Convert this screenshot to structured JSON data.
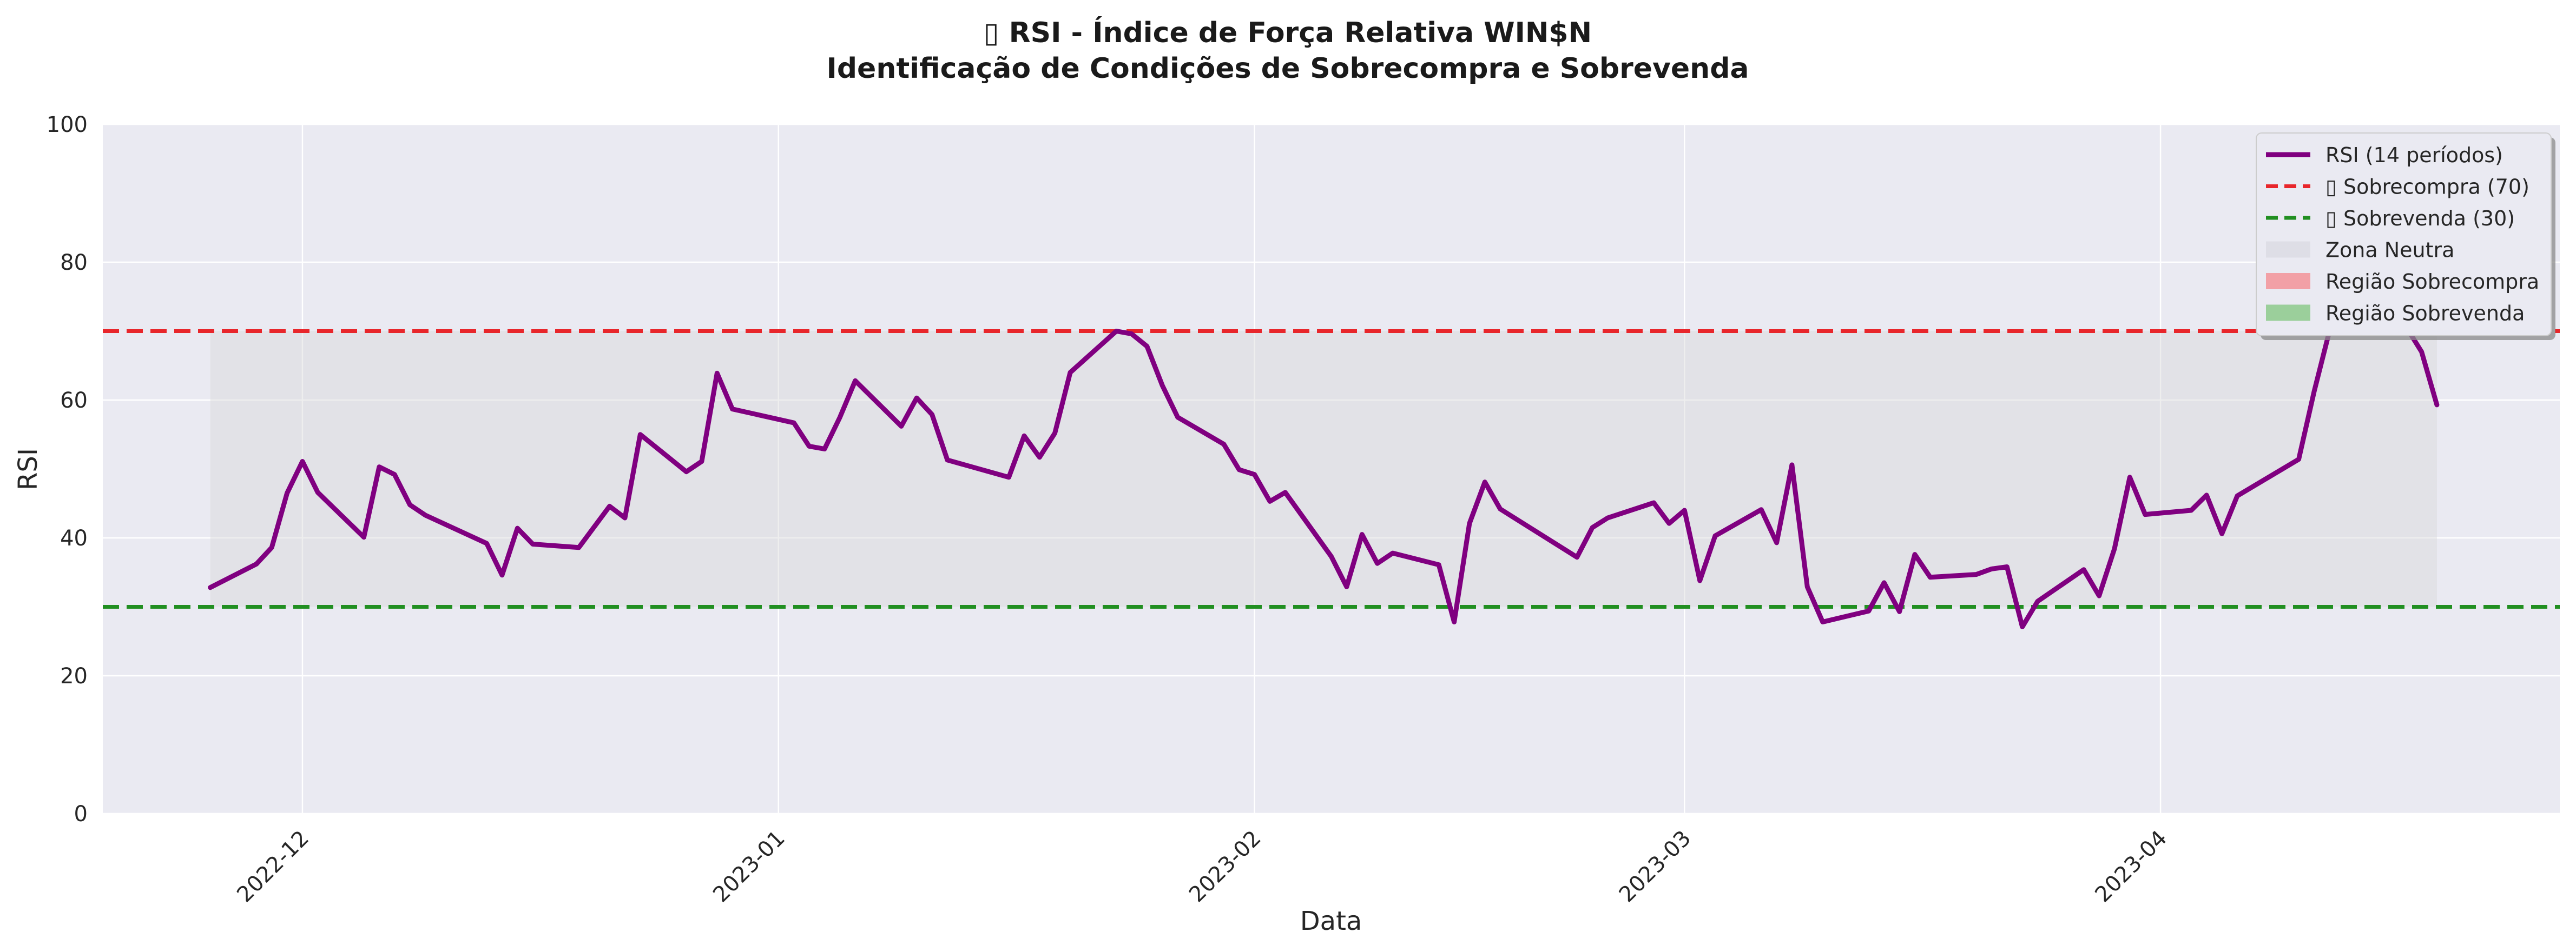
{
  "chart_data": {
    "type": "line",
    "title_line1": "▯ RSI - Índice de Força Relativa WIN$N",
    "title_line2": "Identificação de Condições de Sobrecompra e Sobrevenda",
    "xlabel": "Data",
    "ylabel": "RSI",
    "ylim": [
      0,
      100
    ],
    "xlim": [
      "2022-11-18",
      "2023-04-27"
    ],
    "y_ticks": [
      0,
      20,
      40,
      60,
      80,
      100
    ],
    "x_ticks": [
      "2022-12-01",
      "2023-01-01",
      "2023-02-01",
      "2023-03-01",
      "2023-04-01"
    ],
    "x_tick_labels": [
      "2022-12",
      "2023-01",
      "2023-02",
      "2023-03",
      "2023-04"
    ],
    "grid": true,
    "legend_position": "top-right",
    "overbought_level": 70,
    "oversold_level": 30,
    "neutral_zone": [
      30,
      70
    ],
    "colors": {
      "rsi": "#800080",
      "overbought": "#e8262b",
      "oversold": "#218f21",
      "neutral": "#d9d9d9",
      "overbought_region": "#f2a0a6",
      "oversold_region": "#9bcf9b",
      "plot_bg": "#eaeaf2"
    },
    "legend": [
      {
        "label": "RSI (14 períodos)",
        "style": "line",
        "color": "#800080"
      },
      {
        "label": "▯ Sobrecompra (70)",
        "style": "dashed",
        "color": "#e8262b"
      },
      {
        "label": "▯ Sobrevenda (30)",
        "style": "dashed",
        "color": "#218f21"
      },
      {
        "label": "Zona Neutra",
        "style": "patch",
        "color": "#dedee6"
      },
      {
        "label": "Região Sobrecompra",
        "style": "patch",
        "color": "#f2a0a6"
      },
      {
        "label": "Região Sobrevenda",
        "style": "patch",
        "color": "#9bcf9b"
      }
    ],
    "series": [
      {
        "name": "RSI (14 períodos)",
        "x": [
          "2022-11-25",
          "2022-11-28",
          "2022-11-29",
          "2022-11-30",
          "2022-12-01",
          "2022-12-02",
          "2022-12-05",
          "2022-12-06",
          "2022-12-07",
          "2022-12-08",
          "2022-12-09",
          "2022-12-13",
          "2022-12-14",
          "2022-12-15",
          "2022-12-16",
          "2022-12-19",
          "2022-12-21",
          "2022-12-22",
          "2022-12-23",
          "2022-12-26",
          "2022-12-27",
          "2022-12-28",
          "2022-12-29",
          "2023-01-02",
          "2023-01-03",
          "2023-01-04",
          "2023-01-05",
          "2023-01-06",
          "2023-01-09",
          "2023-01-10",
          "2023-01-11",
          "2023-01-12",
          "2023-01-16",
          "2023-01-17",
          "2023-01-18",
          "2023-01-19",
          "2023-01-20",
          "2023-01-23",
          "2023-01-24",
          "2023-01-25",
          "2023-01-26",
          "2023-01-27",
          "2023-01-30",
          "2023-01-31",
          "2023-02-01",
          "2023-02-02",
          "2023-02-03",
          "2023-02-06",
          "2023-02-07",
          "2023-02-08",
          "2023-02-09",
          "2023-02-10",
          "2023-02-13",
          "2023-02-14",
          "2023-02-15",
          "2023-02-16",
          "2023-02-17",
          "2023-02-22",
          "2023-02-23",
          "2023-02-24",
          "2023-02-27",
          "2023-02-28",
          "2023-03-01",
          "2023-03-02",
          "2023-03-03",
          "2023-03-06",
          "2023-03-07",
          "2023-03-08",
          "2023-03-09",
          "2023-03-10",
          "2023-03-13",
          "2023-03-14",
          "2023-03-15",
          "2023-03-16",
          "2023-03-17",
          "2023-03-20",
          "2023-03-21",
          "2023-03-22",
          "2023-03-23",
          "2023-03-24",
          "2023-03-27",
          "2023-03-28",
          "2023-03-29",
          "2023-03-30",
          "2023-03-31",
          "2023-04-03",
          "2023-04-04",
          "2023-04-05",
          "2023-04-06",
          "2023-04-10",
          "2023-04-11",
          "2023-04-12",
          "2023-04-13",
          "2023-04-14",
          "2023-04-17",
          "2023-04-18",
          "2023-04-19"
        ],
        "values": [
          32.8,
          36.2,
          38.6,
          46.5,
          51.1,
          46.6,
          40.1,
          50.3,
          49.2,
          44.8,
          43.3,
          39.2,
          34.6,
          41.4,
          39.1,
          38.6,
          44.6,
          42.9,
          55.0,
          49.6,
          51.1,
          63.9,
          58.7,
          56.7,
          53.3,
          52.9,
          57.5,
          62.8,
          56.2,
          60.3,
          57.9,
          51.3,
          48.8,
          54.8,
          51.7,
          55.2,
          64.0,
          70.0,
          69.6,
          67.8,
          62.1,
          57.5,
          53.6,
          49.9,
          49.2,
          45.3,
          46.6,
          37.3,
          32.9,
          40.5,
          36.3,
          37.8,
          36.1,
          27.8,
          42.1,
          48.1,
          44.2,
          37.2,
          41.5,
          42.9,
          45.1,
          42.1,
          44.0,
          33.8,
          40.3,
          44.1,
          39.3,
          50.6,
          32.9,
          27.8,
          29.4,
          33.5,
          29.3,
          37.6,
          34.3,
          34.7,
          35.5,
          35.8,
          27.1,
          30.8,
          35.4,
          31.6,
          38.4,
          48.8,
          43.4,
          44.0,
          46.2,
          40.6,
          46.1,
          51.4,
          61.2,
          70.0,
          74.0,
          76.0,
          70.6,
          67.0,
          59.3
        ]
      }
    ]
  }
}
